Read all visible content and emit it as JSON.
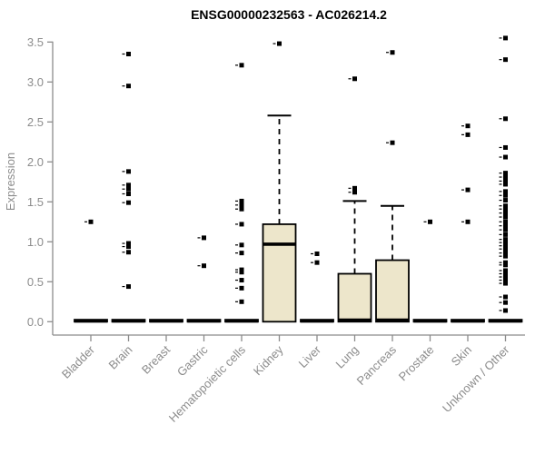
{
  "chart_data": {
    "type": "boxplot",
    "title": "ENSG00000232563 - AC026214.2",
    "ylabel": "Expression",
    "ylim": [
      0.0,
      3.5
    ],
    "ytick_labels": [
      "0.0",
      "0.5",
      "1.0",
      "1.5",
      "2.0",
      "2.5",
      "3.0",
      "3.5"
    ],
    "grid": false,
    "legend": "none",
    "colors": {
      "box_fill": "#EDE6CB",
      "box_stroke": "#000000",
      "median": "#000000",
      "outlier": "#000000",
      "axis": "#8C8C8C",
      "tick_text": "#8C8C8C",
      "title_text": "#000000"
    },
    "categories": [
      "Bladder",
      "Brain",
      "Breast",
      "Gastric",
      "Hematopoietic cells",
      "Kidney",
      "Liver",
      "Lung",
      "Pancreas",
      "Prostate",
      "Skin",
      "Unknown / Other"
    ],
    "series": [
      {
        "category": "Bladder",
        "q1": 0,
        "median": 0.01,
        "q3": 0.025,
        "whisker_low": 0,
        "whisker_high": 0.025,
        "outliers": [
          1.25
        ]
      },
      {
        "category": "Brain",
        "q1": 0,
        "median": 0.01,
        "q3": 0.025,
        "whisker_low": 0,
        "whisker_high": 0.025,
        "outliers": [
          3.35,
          2.95,
          1.88,
          1.71,
          1.66,
          1.6,
          1.49,
          0.98,
          0.94,
          0.87,
          0.44
        ]
      },
      {
        "category": "Breast",
        "q1": 0,
        "median": 0.01,
        "q3": 0.025,
        "whisker_low": 0,
        "whisker_high": 0.025,
        "outliers": []
      },
      {
        "category": "Gastric",
        "q1": 0,
        "median": 0.01,
        "q3": 0.025,
        "whisker_low": 0,
        "whisker_high": 0.025,
        "outliers": [
          1.05,
          0.7
        ]
      },
      {
        "category": "Hematopoietic cells",
        "q1": 0,
        "median": 0.01,
        "q3": 0.025,
        "whisker_low": 0,
        "whisker_high": 0.025,
        "outliers": [
          3.21,
          1.51,
          1.46,
          1.41,
          1.22,
          0.96,
          0.86,
          0.65,
          0.62,
          0.52,
          0.42,
          0.25
        ]
      },
      {
        "category": "Kidney",
        "q1": 0,
        "median": 0.97,
        "q3": 1.22,
        "whisker_low": 0,
        "whisker_high": 2.58,
        "outliers": [
          3.48
        ]
      },
      {
        "category": "Liver",
        "q1": 0,
        "median": 0.01,
        "q3": 0.025,
        "whisker_low": 0,
        "whisker_high": 0.025,
        "outliers": [
          0.85,
          0.74
        ]
      },
      {
        "category": "Lung",
        "q1": 0,
        "median": 0.02,
        "q3": 0.6,
        "whisker_low": 0,
        "whisker_high": 1.51,
        "outliers": [
          3.04,
          1.67,
          1.62
        ]
      },
      {
        "category": "Pancreas",
        "q1": 0,
        "median": 0.02,
        "q3": 0.77,
        "whisker_low": 0,
        "whisker_high": 1.45,
        "outliers": [
          3.37,
          2.24
        ]
      },
      {
        "category": "Prostate",
        "q1": 0,
        "median": 0.01,
        "q3": 0.025,
        "whisker_low": 0,
        "whisker_high": 0.025,
        "outliers": [
          1.25
        ]
      },
      {
        "category": "Skin",
        "q1": 0,
        "median": 0.01,
        "q3": 0.025,
        "whisker_low": 0,
        "whisker_high": 0.025,
        "outliers": [
          2.45,
          2.34,
          1.65,
          1.25
        ]
      },
      {
        "category": "Unknown / Other",
        "q1": 0,
        "median": 0.01,
        "q3": 0.025,
        "whisker_low": 0,
        "whisker_high": 0.025,
        "outliers": [
          3.55,
          3.28,
          2.54,
          2.18,
          2.06,
          1.86,
          1.81,
          1.76,
          1.72,
          1.63,
          1.58,
          1.52,
          1.45,
          1.41,
          1.36,
          1.31,
          1.25,
          1.2,
          1.15,
          1.09,
          1.03,
          0.99,
          0.95,
          0.91,
          0.86,
          0.82,
          0.74,
          0.71,
          0.64,
          0.6,
          0.56,
          0.52,
          0.48,
          0.31,
          0.24,
          0.14
        ]
      }
    ]
  }
}
